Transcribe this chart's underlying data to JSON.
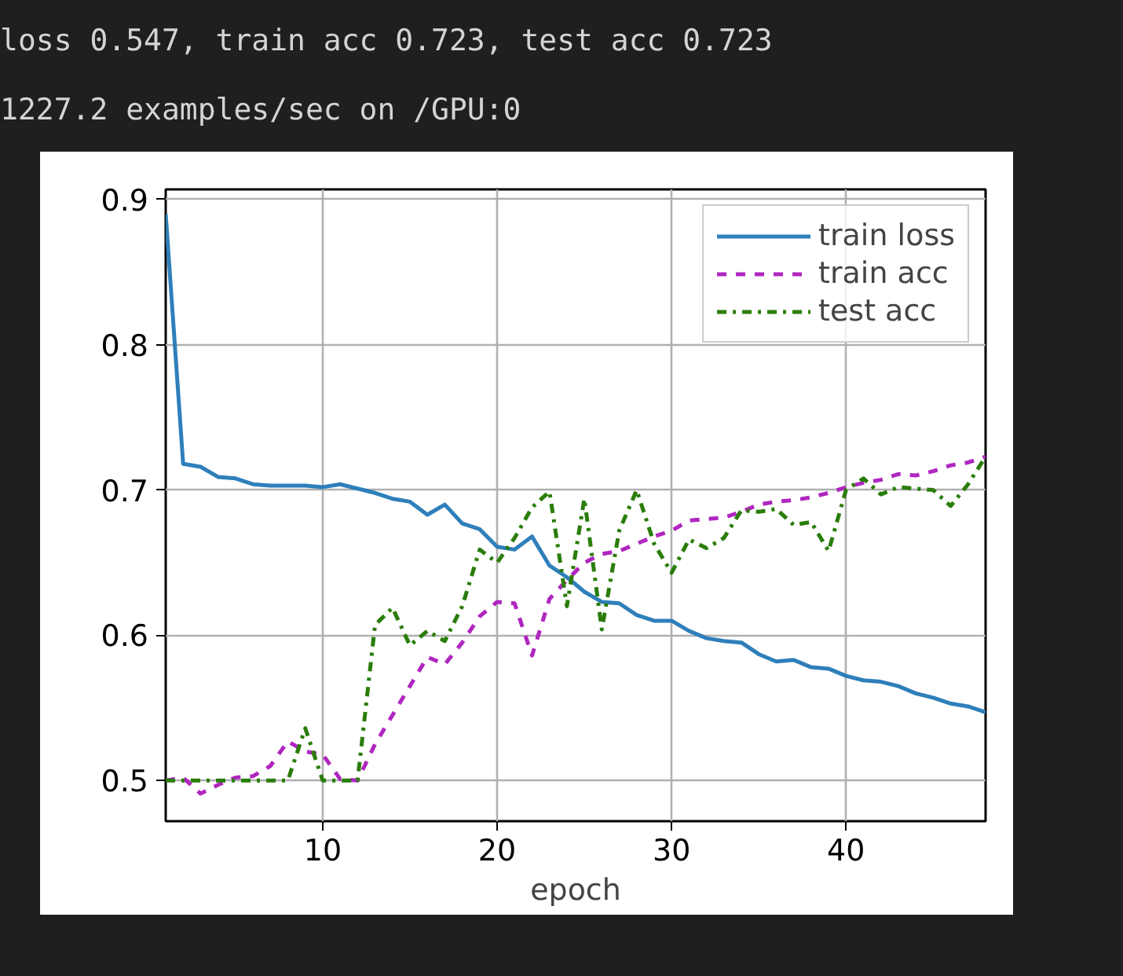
{
  "chart_data": {
    "type": "line",
    "xlabel": "epoch",
    "annotations": [
      "loss 0.547, train acc 0.723, test acc 0.723",
      "1227.2 examples/sec on /GPU:0"
    ],
    "x": [
      1,
      2,
      3,
      4,
      5,
      6,
      7,
      8,
      9,
      10,
      11,
      12,
      13,
      14,
      15,
      16,
      17,
      18,
      19,
      20,
      21,
      22,
      23,
      24,
      25,
      26,
      27,
      28,
      29,
      30,
      31,
      32,
      33,
      34,
      35,
      36,
      37,
      38,
      39,
      40,
      41,
      42,
      43,
      44,
      45,
      46,
      47,
      48
    ],
    "series": [
      {
        "name": "train loss",
        "color": "#2e7fba",
        "line_style": "solid",
        "values": [
          0.89,
          0.718,
          0.716,
          0.709,
          0.708,
          0.704,
          0.703,
          0.703,
          0.703,
          0.702,
          0.704,
          0.701,
          0.698,
          0.694,
          0.692,
          0.683,
          0.69,
          0.677,
          0.673,
          0.661,
          0.659,
          0.668,
          0.648,
          0.64,
          0.63,
          0.623,
          0.622,
          0.614,
          0.61,
          0.61,
          0.603,
          0.598,
          0.596,
          0.595,
          0.587,
          0.582,
          0.583,
          0.578,
          0.577,
          0.572,
          0.569,
          0.568,
          0.565,
          0.56,
          0.557,
          0.553,
          0.551,
          0.547
        ]
      },
      {
        "name": "train acc",
        "color": "#b026c0",
        "line_style": "dashed",
        "values": [
          0.5,
          0.502,
          0.491,
          0.497,
          0.502,
          0.503,
          0.51,
          0.527,
          0.52,
          0.518,
          0.501,
          0.5,
          0.525,
          0.545,
          0.565,
          0.585,
          0.58,
          0.595,
          0.613,
          0.623,
          0.622,
          0.586,
          0.625,
          0.638,
          0.65,
          0.656,
          0.658,
          0.663,
          0.668,
          0.672,
          0.679,
          0.68,
          0.681,
          0.685,
          0.69,
          0.692,
          0.693,
          0.695,
          0.698,
          0.702,
          0.705,
          0.707,
          0.711,
          0.71,
          0.713,
          0.717,
          0.719,
          0.723
        ]
      },
      {
        "name": "test acc",
        "color": "#2a7d0a",
        "line_style": "dashdot",
        "values": [
          0.5,
          0.5,
          0.5,
          0.5,
          0.5,
          0.5,
          0.5,
          0.5,
          0.536,
          0.5,
          0.5,
          0.5,
          0.607,
          0.619,
          0.593,
          0.603,
          0.596,
          0.62,
          0.659,
          0.65,
          0.667,
          0.688,
          0.699,
          0.62,
          0.694,
          0.604,
          0.672,
          0.7,
          0.663,
          0.643,
          0.666,
          0.66,
          0.667,
          0.686,
          0.685,
          0.687,
          0.676,
          0.678,
          0.658,
          0.7,
          0.708,
          0.697,
          0.702,
          0.701,
          0.7,
          0.689,
          0.704,
          0.723
        ]
      }
    ],
    "xlim": [
      1,
      48
    ],
    "ylim": [
      0.472,
      0.907
    ],
    "xticks": [
      10,
      20,
      30,
      40
    ],
    "yticks": [
      0.5,
      0.6,
      0.7,
      0.8,
      0.9
    ],
    "grid": true,
    "legend": "top right"
  }
}
